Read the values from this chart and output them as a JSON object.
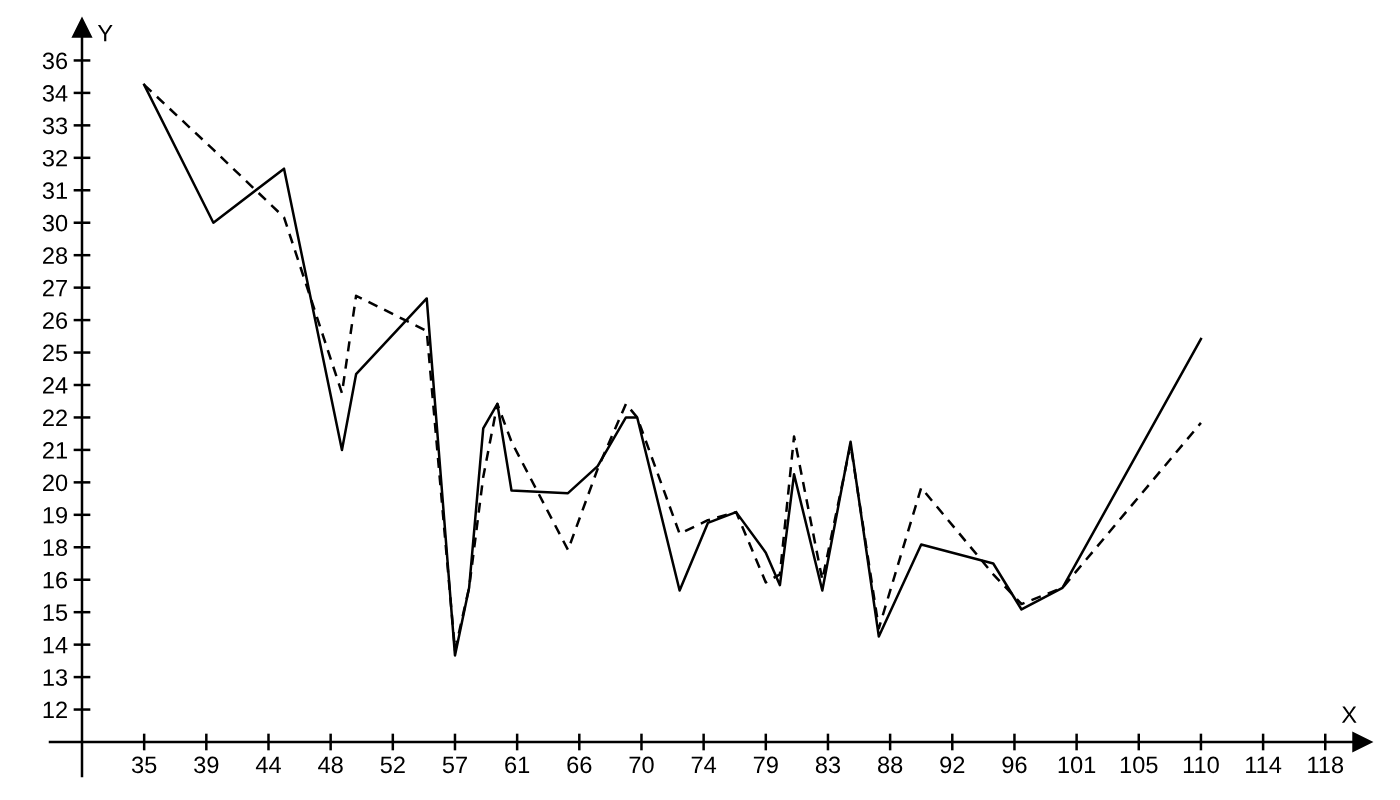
{
  "chart_data": {
    "type": "line",
    "xlabel": "X",
    "ylabel": "Y",
    "x": [
      34.8,
      39.7,
      44.7,
      48.8,
      49.8,
      54.8,
      56.8,
      57.8,
      58.8,
      59.8,
      60.8,
      64.8,
      66.9,
      68.9,
      69.7,
      72.7,
      74.7,
      76.7,
      78.8,
      79.8,
      80.8,
      82.8,
      84.8,
      86.8,
      89.8,
      94.9,
      96.9,
      99.8,
      109.6
    ],
    "series": [
      {
        "color": "#000000",
        "line_style": "solid",
        "values": [
          34.7,
          29.6,
          31.6,
          21.2,
          24.0,
          26.8,
          13.6,
          16.1,
          22.0,
          22.9,
          19.7,
          19.6,
          20.6,
          22.4,
          22.4,
          16.0,
          18.5,
          18.9,
          17.4,
          16.2,
          20.3,
          16.0,
          21.5,
          14.3,
          17.7,
          17.0,
          15.3,
          16.1,
          25.3
        ]
      },
      {
        "color": "#000000",
        "line_style": "dashed",
        "values": [
          34.7,
          32.3,
          29.8,
          23.3,
          26.9,
          25.6,
          13.8,
          16.1,
          20.2,
          22.9,
          21.5,
          17.5,
          20.5,
          22.9,
          22.4,
          18.1,
          18.6,
          18.9,
          16.3,
          16.6,
          21.7,
          16.4,
          21.4,
          14.6,
          19.8,
          16.6,
          15.5,
          16.1,
          22.2
        ]
      }
    ],
    "xlim": [
      30.4,
      121.0
    ],
    "ylim": [
      10.4,
      36.8
    ],
    "xticks": [
      {
        "value": 34.8,
        "label": "35"
      },
      {
        "value": 39.2,
        "label": "39"
      },
      {
        "value": 43.6,
        "label": "44"
      },
      48,
      {
        "value": 52.4,
        "label": "52"
      },
      {
        "value": 56.8,
        "label": "57"
      },
      {
        "value": 61.2,
        "label": "61"
      },
      {
        "value": 65.6,
        "label": "66"
      },
      70,
      {
        "value": 74.4,
        "label": "74"
      },
      {
        "value": 78.8,
        "label": "79"
      },
      {
        "value": 83.2,
        "label": "83"
      },
      {
        "value": 87.6,
        "label": "88"
      },
      92,
      {
        "value": 96.4,
        "label": "96"
      },
      {
        "value": 100.8,
        "label": "101"
      },
      {
        "value": 105.2,
        "label": "105"
      },
      {
        "value": 109.6,
        "label": "110"
      },
      114,
      {
        "value": 118.4,
        "label": "118"
      }
    ],
    "yticks": [
      {
        "value": 11.6,
        "label": "12"
      },
      {
        "value": 12.8,
        "label": "13"
      },
      14,
      {
        "value": 15.2,
        "label": "15"
      },
      {
        "value": 16.4,
        "label": "16"
      },
      {
        "value": 17.6,
        "label": "18"
      },
      {
        "value": 18.8,
        "label": "19"
      },
      20,
      {
        "value": 21.2,
        "label": "21"
      },
      {
        "value": 22.4,
        "label": "22"
      },
      {
        "value": 23.6,
        "label": "24"
      },
      {
        "value": 24.8,
        "label": "25"
      },
      26,
      {
        "value": 27.2,
        "label": "27"
      },
      {
        "value": 28.4,
        "label": "28"
      },
      {
        "value": 29.6,
        "label": "30"
      },
      {
        "value": 30.8,
        "label": "31"
      },
      32,
      {
        "value": 33.2,
        "label": "33"
      },
      {
        "value": 34.4,
        "label": "34"
      },
      {
        "value": 35.6,
        "label": "36"
      }
    ]
  }
}
